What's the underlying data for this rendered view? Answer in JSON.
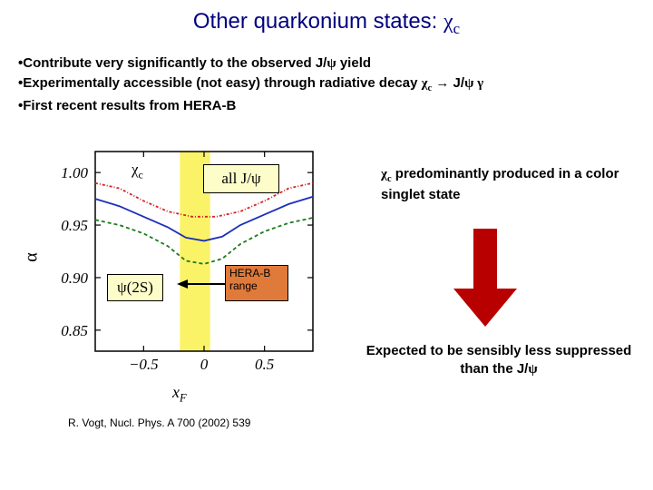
{
  "title_prefix": "Other quarkonium states: ",
  "title_symbol": "χ",
  "title_sub": "c",
  "bullets": {
    "b1_pre": "Contribute very significantly to the observed J/",
    "b1_psi": "ψ",
    "b1_post": " yield",
    "b2_pre": "Experimentally accessible (not easy) through radiative decay ",
    "b2_chi": "χ",
    "b2_c": "c",
    "b2_arrow": " → J/",
    "b2_psi": "ψ",
    "b2_gamma": " γ",
    "b3": "First recent results from HERA-B"
  },
  "chart": {
    "xlabel": "x",
    "xlabel_sub": "F",
    "ylabel": "α",
    "xlim": [
      -0.9,
      0.9
    ],
    "ylim": [
      0.83,
      1.02
    ],
    "yticks": [
      0.85,
      0.9,
      0.95,
      1.0
    ],
    "xticks": [
      -0.5,
      0,
      0.5
    ],
    "highlight_x": [
      -0.2,
      0.05
    ],
    "highlight_color": "#fbf367",
    "background_color": "#ffffff",
    "grid_color": "#000000",
    "series": {
      "chi_c": {
        "color": "#d92424",
        "dash": "3,2,1,2",
        "width": 1.8,
        "pts": [
          [
            -0.9,
            0.99
          ],
          [
            -0.7,
            0.985
          ],
          [
            -0.5,
            0.973
          ],
          [
            -0.3,
            0.963
          ],
          [
            -0.1,
            0.958
          ],
          [
            0.1,
            0.958
          ],
          [
            0.3,
            0.963
          ],
          [
            0.5,
            0.973
          ],
          [
            0.7,
            0.985
          ],
          [
            0.9,
            0.99
          ]
        ]
      },
      "psi2s": {
        "color": "#1c7a1c",
        "dash": "4,3",
        "width": 1.8,
        "pts": [
          [
            -0.9,
            0.955
          ],
          [
            -0.7,
            0.95
          ],
          [
            -0.5,
            0.942
          ],
          [
            -0.3,
            0.93
          ],
          [
            -0.15,
            0.916
          ],
          [
            0,
            0.913
          ],
          [
            0.15,
            0.918
          ],
          [
            0.3,
            0.932
          ],
          [
            0.5,
            0.944
          ],
          [
            0.7,
            0.952
          ],
          [
            0.9,
            0.957
          ]
        ]
      },
      "alljpsi": {
        "color": "#1a2fbb",
        "dash": "none",
        "width": 1.8,
        "pts": [
          [
            -0.9,
            0.975
          ],
          [
            -0.7,
            0.968
          ],
          [
            -0.5,
            0.958
          ],
          [
            -0.3,
            0.948
          ],
          [
            -0.15,
            0.938
          ],
          [
            0,
            0.935
          ],
          [
            0.15,
            0.939
          ],
          [
            0.3,
            0.95
          ],
          [
            0.5,
            0.96
          ],
          [
            0.7,
            0.97
          ],
          [
            0.9,
            0.977
          ]
        ]
      }
    },
    "chi_label": "χ",
    "chi_label_sub": "c",
    "alljpsi_label_pre": "all J/",
    "alljpsi_label_psi": "ψ",
    "psi2s_label": "ψ",
    "psi2s_label_post": "(2S)",
    "herab_label": "HERA-B range"
  },
  "arrow_color": "#b80000",
  "right1_chi": "χ",
  "right1_c": "c",
  "right1_text": " predominantly produced in a color singlet state",
  "right2_pre": "Expected to be sensibly less suppressed than the J/",
  "right2_psi": "ψ",
  "citation": "R. Vogt, Nucl. Phys. A 700 (2002) 539"
}
